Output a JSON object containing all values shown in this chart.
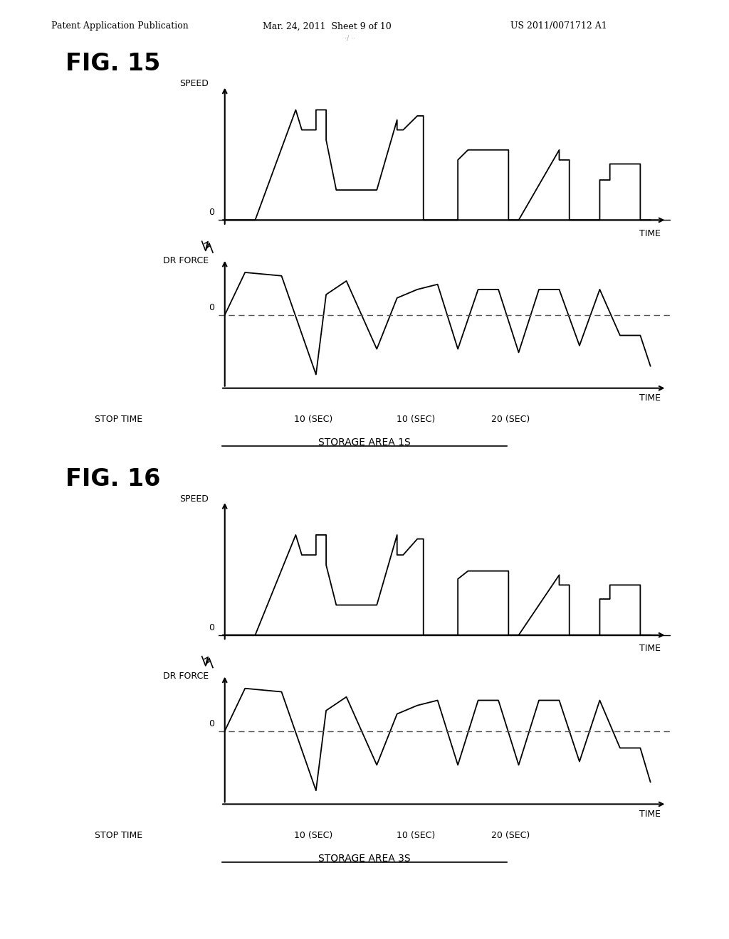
{
  "fig_title1": "FIG. 15",
  "fig_title2": "FIG. 16",
  "patent_header": "Patent Application Publication",
  "patent_date": "Mar. 24, 2011  Sheet 9 of 10",
  "patent_num": "US 2011/0071712 A1",
  "speed_label": "SPEED",
  "time_label": "TIME",
  "drforce_label": "DR FORCE",
  "zero_label": "0",
  "stop_time_label": "STOP TIME",
  "time_ticks": [
    "10 (SEC)",
    "10 (SEC)",
    "20 (SEC)"
  ],
  "storage_label1": "STORAGE AREA 1S",
  "storage_label2": "STORAGE AREA 3S",
  "bg_color": "#ffffff",
  "line_color": "#000000",
  "dashed_color": "#555555",
  "fig15_speed_x": [
    0,
    0,
    1.5,
    3.5,
    3.5,
    3.8,
    4.5,
    4.5,
    5.0,
    5.0,
    5.5,
    7.5,
    8.5,
    8.5,
    8.8,
    9.5,
    9.8,
    9.8,
    11.5,
    11.5,
    12.0,
    14.0,
    14.0,
    14.5,
    16.5,
    16.5,
    17.0,
    17.0,
    18.5,
    18.5,
    19.0,
    19.0,
    20.5,
    20.5,
    21.0
  ],
  "fig15_speed_y": [
    0,
    0,
    0,
    5.5,
    5.5,
    4.5,
    4.5,
    5.5,
    5.5,
    4.0,
    1.5,
    1.5,
    5.0,
    4.5,
    4.5,
    5.2,
    5.2,
    0,
    0,
    3.0,
    3.5,
    3.5,
    0,
    0,
    3.5,
    3.0,
    3.0,
    0,
    0,
    2.0,
    2.0,
    2.8,
    2.8,
    0,
    0
  ],
  "fig15_force_x": [
    0,
    1.0,
    2.8,
    4.5,
    5.0,
    6.0,
    7.5,
    8.5,
    9.5,
    10.5,
    11.5,
    12.5,
    13.5,
    14.5,
    15.5,
    16.5,
    17.5,
    18.5,
    19.5,
    20.5,
    21.0
  ],
  "fig15_force_y": [
    0,
    2.5,
    2.3,
    -3.5,
    1.2,
    2.0,
    -2.0,
    1.0,
    1.5,
    1.8,
    -2.0,
    1.5,
    1.5,
    -2.2,
    1.5,
    1.5,
    -1.8,
    1.5,
    -1.2,
    -1.2,
    -3.0
  ],
  "fig16_speed_x": [
    0,
    0,
    1.5,
    3.5,
    3.5,
    3.8,
    4.5,
    4.5,
    5.0,
    5.0,
    5.5,
    7.5,
    8.5,
    8.5,
    8.8,
    9.5,
    9.8,
    9.8,
    11.5,
    11.5,
    12.0,
    14.0,
    14.0,
    14.5,
    16.5,
    16.5,
    17.0,
    17.0,
    18.5,
    18.5,
    19.0,
    19.0,
    20.5,
    20.5,
    21.0
  ],
  "fig16_speed_y": [
    0,
    0,
    0,
    5.0,
    5.0,
    4.0,
    4.0,
    5.0,
    5.0,
    3.5,
    1.5,
    1.5,
    5.0,
    4.0,
    4.0,
    4.8,
    4.8,
    0,
    0,
    2.8,
    3.2,
    3.2,
    0,
    0,
    3.0,
    2.5,
    2.5,
    0,
    0,
    1.8,
    1.8,
    2.5,
    2.5,
    0,
    0
  ],
  "fig16_force_x": [
    0,
    1.0,
    2.8,
    4.5,
    5.0,
    6.0,
    7.5,
    8.5,
    9.5,
    10.5,
    11.5,
    12.5,
    13.5,
    14.5,
    15.5,
    16.5,
    17.5,
    18.5,
    19.5,
    20.5,
    21.0
  ],
  "fig16_force_y": [
    0,
    2.5,
    2.3,
    -3.5,
    1.2,
    2.0,
    -2.0,
    1.0,
    1.5,
    1.8,
    -2.0,
    1.8,
    1.8,
    -2.0,
    1.8,
    1.8,
    -1.8,
    1.8,
    -1.0,
    -1.0,
    -3.0
  ]
}
